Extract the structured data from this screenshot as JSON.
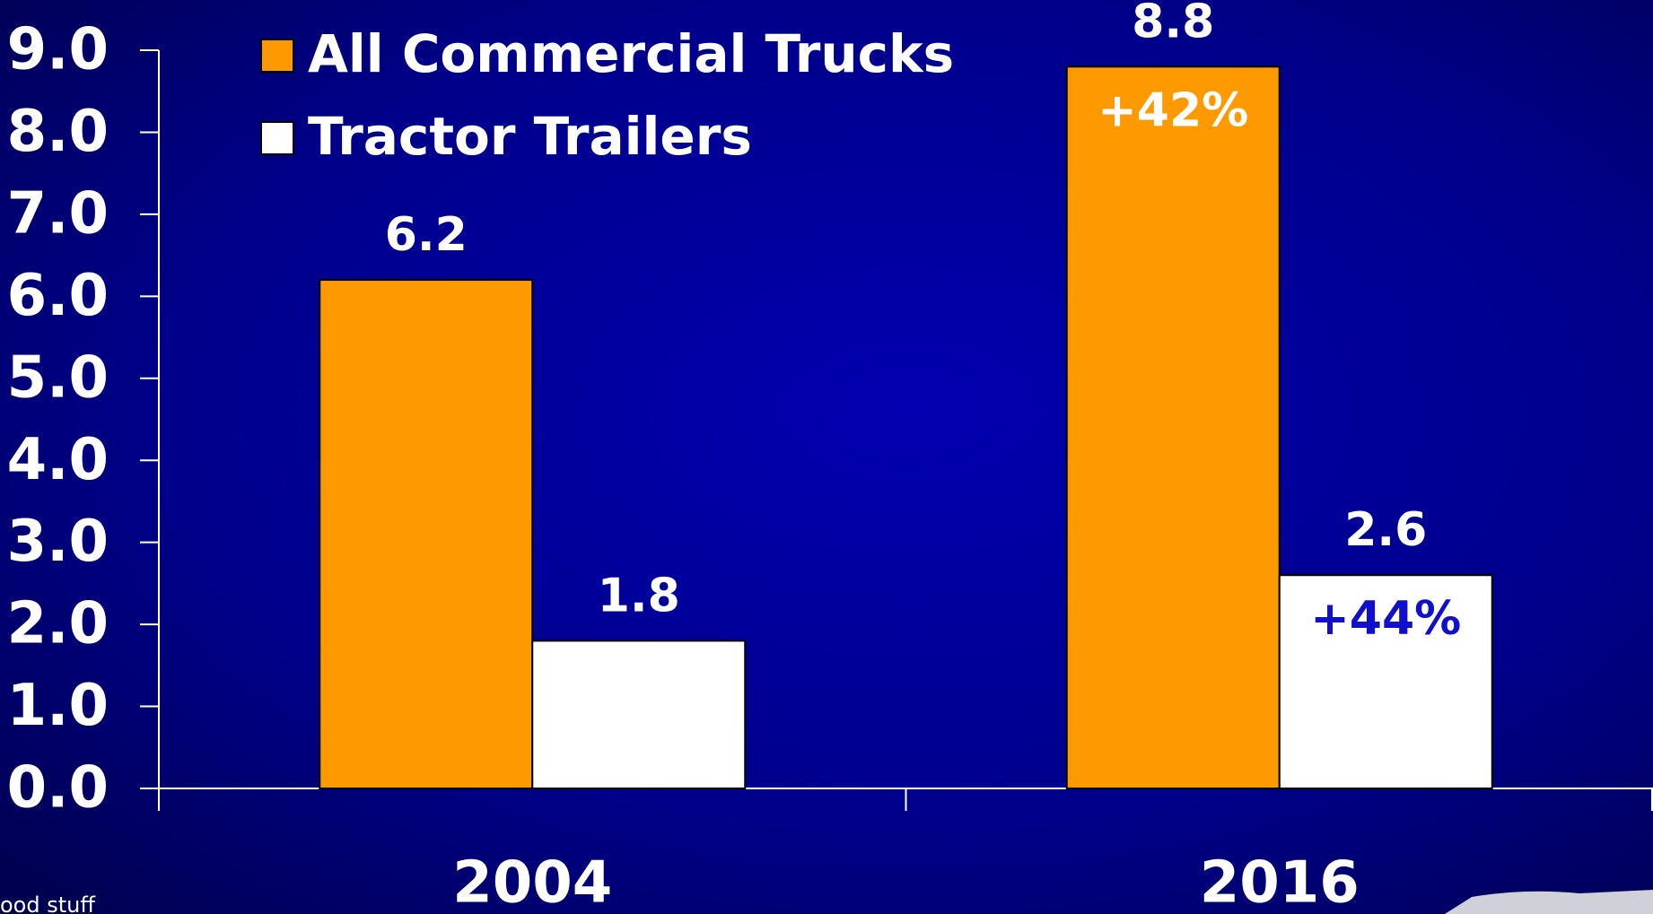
{
  "chart_data": {
    "type": "bar",
    "categories": [
      "2004",
      "2016"
    ],
    "series": [
      {
        "name": "All Commercial Trucks",
        "color": "#ff9900",
        "values": [
          6.2,
          8.8
        ]
      },
      {
        "name": "Tractor Trailers",
        "color": "#ffffff",
        "values": [
          1.8,
          2.6
        ]
      }
    ],
    "annotations": [
      "+42%",
      "+44%"
    ],
    "ylim": [
      0,
      9
    ],
    "yticks": [
      {
        "value": 0,
        "label": "0.0"
      },
      {
        "value": 1,
        "label": "1.0"
      },
      {
        "value": 2,
        "label": "2.0"
      },
      {
        "value": 3,
        "label": "3.0"
      },
      {
        "value": 4,
        "label": "4.0"
      },
      {
        "value": 5,
        "label": "5.0"
      },
      {
        "value": 6,
        "label": "6.0"
      },
      {
        "value": 7,
        "label": "7.0"
      },
      {
        "value": 8,
        "label": "8.0"
      },
      {
        "value": 9,
        "label": "9.0"
      }
    ],
    "legend": "top-left",
    "footer": "ood stuff"
  }
}
